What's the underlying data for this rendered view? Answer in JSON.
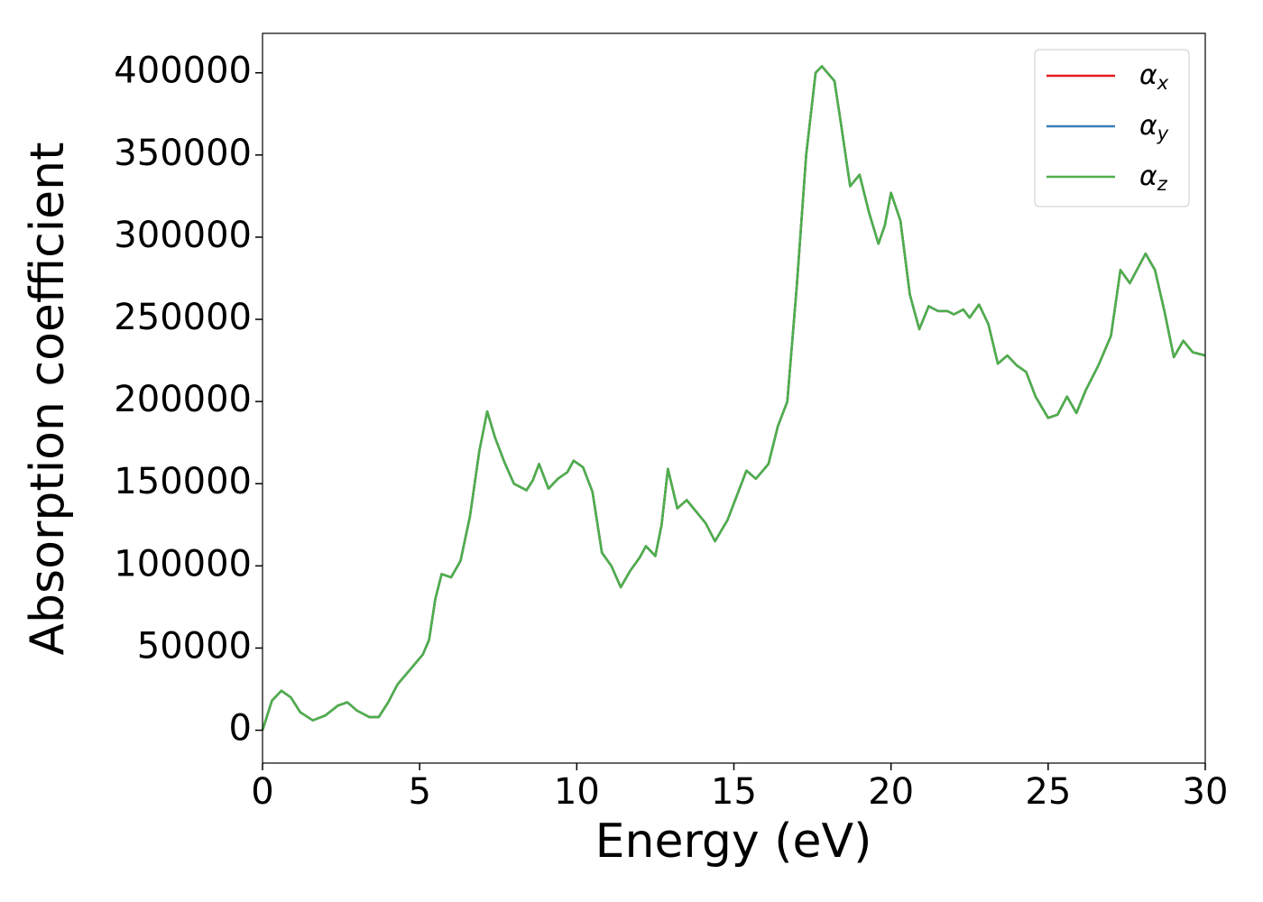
{
  "chart_data": {
    "type": "line",
    "x_label": "Energy (eV)",
    "y_label": "Absorption coefficient",
    "x": [
      0,
      0.3,
      0.6,
      0.9,
      1.2,
      1.6,
      2.0,
      2.4,
      2.7,
      3.0,
      3.4,
      3.7,
      4.0,
      4.3,
      4.7,
      5.1,
      5.3,
      5.5,
      5.7,
      6.0,
      6.3,
      6.6,
      6.9,
      7.15,
      7.4,
      7.7,
      8.0,
      8.4,
      8.6,
      8.8,
      9.1,
      9.4,
      9.7,
      9.9,
      10.2,
      10.5,
      10.8,
      11.1,
      11.4,
      11.7,
      12.0,
      12.2,
      12.5,
      12.7,
      12.9,
      13.2,
      13.5,
      13.8,
      14.1,
      14.4,
      14.8,
      15.1,
      15.4,
      15.7,
      16.1,
      16.4,
      16.7,
      17.0,
      17.3,
      17.6,
      17.8,
      18.2,
      18.4,
      18.7,
      19.0,
      19.3,
      19.6,
      19.8,
      20.0,
      20.3,
      20.6,
      20.9,
      21.2,
      21.5,
      21.8,
      22.0,
      22.3,
      22.5,
      22.8,
      23.1,
      23.4,
      23.7,
      24.0,
      24.3,
      24.6,
      25.0,
      25.3,
      25.6,
      25.9,
      26.2,
      26.6,
      27.0,
      27.3,
      27.6,
      28.1,
      28.4,
      28.7,
      29.0,
      29.3,
      29.6,
      30.0
    ],
    "series": [
      {
        "name": "αx",
        "color": "#e41a1c",
        "values": [
          0,
          18000,
          24000,
          20000,
          11000,
          6000,
          9000,
          15000,
          17000,
          12000,
          8000,
          8000,
          17000,
          28000,
          37000,
          46000,
          55000,
          80000,
          95000,
          93000,
          103000,
          130000,
          170000,
          194000,
          178000,
          163000,
          150000,
          146000,
          152000,
          162000,
          147000,
          153000,
          157000,
          164000,
          160000,
          145000,
          108000,
          100000,
          87000,
          97000,
          105000,
          112000,
          106000,
          125000,
          159000,
          135000,
          140000,
          133000,
          126000,
          115000,
          128000,
          143000,
          158000,
          153000,
          162000,
          185000,
          200000,
          270000,
          350000,
          400000,
          404000,
          395000,
          370000,
          331000,
          338000,
          315000,
          296000,
          307000,
          327000,
          310000,
          265000,
          244000,
          258000,
          255000,
          255000,
          253000,
          256000,
          251000,
          259000,
          247000,
          223000,
          228000,
          222000,
          218000,
          203000,
          190000,
          192000,
          203000,
          193000,
          207000,
          222000,
          240000,
          280000,
          272000,
          290000,
          280000,
          255000,
          227000,
          237000,
          230000,
          228000
        ]
      },
      {
        "name": "αy",
        "color": "#377eb8",
        "values": [
          0,
          18000,
          24000,
          20000,
          11000,
          6000,
          9000,
          15000,
          17000,
          12000,
          8000,
          8000,
          17000,
          28000,
          37000,
          46000,
          55000,
          80000,
          95000,
          93000,
          103000,
          130000,
          170000,
          194000,
          178000,
          163000,
          150000,
          146000,
          152000,
          162000,
          147000,
          153000,
          157000,
          164000,
          160000,
          145000,
          108000,
          100000,
          87000,
          97000,
          105000,
          112000,
          106000,
          125000,
          159000,
          135000,
          140000,
          133000,
          126000,
          115000,
          128000,
          143000,
          158000,
          153000,
          162000,
          185000,
          200000,
          270000,
          350000,
          400000,
          404000,
          395000,
          370000,
          331000,
          338000,
          315000,
          296000,
          307000,
          327000,
          310000,
          265000,
          244000,
          258000,
          255000,
          255000,
          253000,
          256000,
          251000,
          259000,
          247000,
          223000,
          228000,
          222000,
          218000,
          203000,
          190000,
          192000,
          203000,
          193000,
          207000,
          222000,
          240000,
          280000,
          272000,
          290000,
          280000,
          255000,
          227000,
          237000,
          230000,
          228000
        ]
      },
      {
        "name": "αz",
        "color": "#4daf4a",
        "values": [
          0,
          18000,
          24000,
          20000,
          11000,
          6000,
          9000,
          15000,
          17000,
          12000,
          8000,
          8000,
          17000,
          28000,
          37000,
          46000,
          55000,
          80000,
          95000,
          93000,
          103000,
          130000,
          170000,
          194000,
          178000,
          163000,
          150000,
          146000,
          152000,
          162000,
          147000,
          153000,
          157000,
          164000,
          160000,
          145000,
          108000,
          100000,
          87000,
          97000,
          105000,
          112000,
          106000,
          125000,
          159000,
          135000,
          140000,
          133000,
          126000,
          115000,
          128000,
          143000,
          158000,
          153000,
          162000,
          185000,
          200000,
          270000,
          350000,
          400000,
          404000,
          395000,
          370000,
          331000,
          338000,
          315000,
          296000,
          307000,
          327000,
          310000,
          265000,
          244000,
          258000,
          255000,
          255000,
          253000,
          256000,
          251000,
          259000,
          247000,
          223000,
          228000,
          222000,
          218000,
          203000,
          190000,
          192000,
          203000,
          193000,
          207000,
          222000,
          240000,
          280000,
          272000,
          290000,
          280000,
          255000,
          227000,
          237000,
          230000,
          228000
        ]
      }
    ],
    "xlim": [
      0,
      30
    ],
    "xticks": [
      0,
      5,
      10,
      15,
      20,
      25,
      30
    ],
    "ylim": [
      -20000,
      424000
    ],
    "yticks": [
      0,
      50000,
      100000,
      150000,
      200000,
      250000,
      300000,
      350000,
      400000
    ],
    "grid": false,
    "legend": "upper right"
  }
}
